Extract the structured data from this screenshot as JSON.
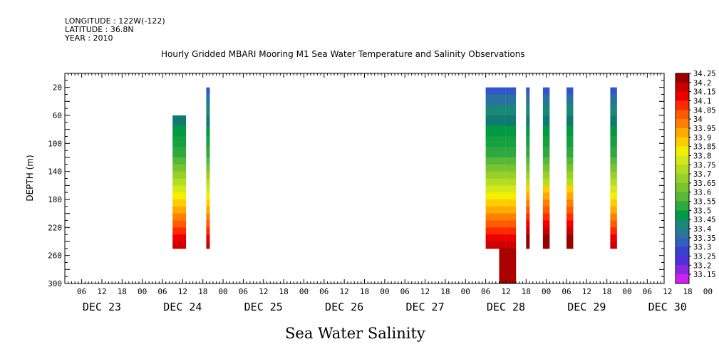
{
  "header": {
    "longitude": "LONGITUDE : 122W(-122)",
    "latitude": "LATITUDE : 36.8N",
    "year": "YEAR : 2010"
  },
  "title": "Hourly Gridded MBARI Mooring M1 Sea Water Temperature and Salinity Observations",
  "subtitle": "Sea Water Salinity",
  "chart_data": {
    "type": "heatmap",
    "title": "Hourly Gridded MBARI Mooring M1 Sea Water Temperature and Salinity Observations",
    "subtitle": "Sea Water Salinity",
    "ylabel": "DEPTH (m)",
    "y_reversed": true,
    "ylim": [
      300,
      0
    ],
    "y_ticks": [
      20,
      60,
      100,
      140,
      180,
      220,
      260,
      300
    ],
    "x_hour_ticks": [
      "06",
      "12",
      "18",
      "00",
      "06",
      "12",
      "18",
      "00",
      "06",
      "12",
      "18",
      "00",
      "06",
      "12",
      "18",
      "00",
      "06",
      "12",
      "18",
      "00",
      "06",
      "12",
      "18",
      "00",
      "06",
      "12",
      "18",
      "00",
      "06",
      "12",
      "18",
      "00",
      "06"
    ],
    "x_day_labels": [
      "DEC 23",
      "DEC 24",
      "DEC 25",
      "DEC 26",
      "DEC 27",
      "DEC 28",
      "DEC 29",
      "DEC 30"
    ],
    "colorbar_levels": [
      "34.25",
      "34.2",
      "34.15",
      "34.1",
      "34.05",
      "34",
      "33.95",
      "33.9",
      "33.85",
      "33.8",
      "33.75",
      "33.7",
      "33.65",
      "33.6",
      "33.55",
      "33.5",
      "33.45",
      "33.4",
      "33.35",
      "33.3",
      "33.25",
      "33.2",
      "33.15"
    ],
    "colorbar_colors": [
      "#990000",
      "#cc0000",
      "#ee0000",
      "#ff2a00",
      "#ff5a00",
      "#ff8000",
      "#ffaa00",
      "#ffcc00",
      "#f0f000",
      "#d4e81a",
      "#b4dc20",
      "#96d028",
      "#78c430",
      "#58b838",
      "#30a840",
      "#009944",
      "#1a8878",
      "#2a7898",
      "#3060c0",
      "#3a40cc",
      "#5030d8",
      "#8a28e0",
      "#cc22ee"
    ],
    "depth_profile_rows": [
      [
        20,
        "#3355cc"
      ],
      [
        30,
        "#2a70a0"
      ],
      [
        45,
        "#1a8878"
      ],
      [
        60,
        "#117a70"
      ],
      [
        75,
        "#009944"
      ],
      [
        90,
        "#16a040"
      ],
      [
        105,
        "#30a840"
      ],
      [
        120,
        "#58b838"
      ],
      [
        130,
        "#78c430"
      ],
      [
        140,
        "#96d028"
      ],
      [
        150,
        "#b4dc20"
      ],
      [
        160,
        "#d4e81a"
      ],
      [
        170,
        "#f0f000"
      ],
      [
        180,
        "#ffcc00"
      ],
      [
        190,
        "#ffaa00"
      ],
      [
        200,
        "#ff8000"
      ],
      [
        210,
        "#ff5a00"
      ],
      [
        220,
        "#ff2a00"
      ],
      [
        230,
        "#ee0000"
      ],
      [
        240,
        "#cc0000"
      ],
      [
        250,
        "#990000"
      ]
    ],
    "observation_columns": [
      {
        "start_hour": 33,
        "end_hour": 37,
        "top_depth": 60,
        "bottom_depth": 250,
        "profile": "deep60"
      },
      {
        "start_hour": 43,
        "end_hour": 44,
        "top_depth": 20,
        "bottom_depth": 250,
        "profile": "full"
      },
      {
        "start_hour": 126,
        "end_hour": 130,
        "top_depth": 20,
        "bottom_depth": 250,
        "profile": "full"
      },
      {
        "start_hour": 130,
        "end_hour": 132,
        "top_depth": 20,
        "bottom_depth": 300,
        "profile": "extended"
      },
      {
        "start_hour": 132,
        "end_hour": 135,
        "top_depth": 20,
        "bottom_depth": 300,
        "profile": "extended"
      },
      {
        "start_hour": 138,
        "end_hour": 139,
        "top_depth": 20,
        "bottom_depth": 250,
        "profile": "saltier"
      },
      {
        "start_hour": 143,
        "end_hour": 145,
        "top_depth": 20,
        "bottom_depth": 250,
        "profile": "saltier"
      },
      {
        "start_hour": 150,
        "end_hour": 152,
        "top_depth": 20,
        "bottom_depth": 250,
        "profile": "saltier"
      },
      {
        "start_hour": 163,
        "end_hour": 165,
        "top_depth": 20,
        "bottom_depth": 250,
        "profile": "full"
      }
    ]
  }
}
